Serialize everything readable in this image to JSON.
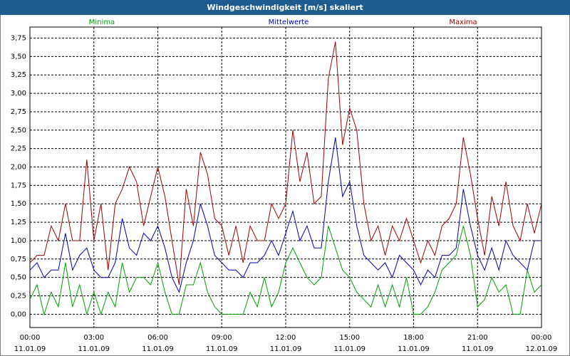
{
  "chart_data": {
    "type": "line",
    "title": "Windgeschwindigkeit [m/s] skaliert",
    "x": [
      0,
      20,
      40,
      60,
      80,
      100,
      120,
      140,
      160,
      180,
      200,
      220,
      240,
      260,
      280,
      300,
      320,
      340,
      360,
      380,
      400,
      420,
      440,
      460,
      480,
      500,
      520,
      540,
      560,
      580,
      600,
      620,
      640,
      660,
      680,
      700,
      720,
      740,
      760,
      780,
      800,
      820,
      840,
      860,
      880,
      900,
      920,
      940,
      960,
      980,
      1000,
      1020,
      1040,
      1060,
      1080,
      1100,
      1120,
      1140,
      1160,
      1180,
      1200,
      1220,
      1240,
      1260,
      1280,
      1300,
      1320,
      1340,
      1360,
      1380,
      1400,
      1420,
      1440
    ],
    "series": [
      {
        "name": "Minima",
        "color": "#00a000",
        "values": [
          0.2,
          0.4,
          0,
          0.3,
          0.1,
          0.7,
          0.1,
          0.4,
          0,
          0.3,
          0,
          0.3,
          0.1,
          0.7,
          0.3,
          0.5,
          0.5,
          0.4,
          0.7,
          0.3,
          0,
          0,
          0.4,
          0.4,
          0.7,
          0.3,
          0.1,
          0,
          0,
          0,
          0,
          0.3,
          0.1,
          0.5,
          0.1,
          0.3,
          0.7,
          0.9,
          0.7,
          0.5,
          0.4,
          0.5,
          1.2,
          0.9,
          0.6,
          0.5,
          0.3,
          0.2,
          0.1,
          0.4,
          0.1,
          0.4,
          0.1,
          0.5,
          0,
          0,
          0.1,
          0.3,
          0.6,
          0.7,
          0.8,
          1.2,
          0.8,
          0.1,
          0.2,
          0.5,
          0.3,
          0.4,
          0,
          0,
          0.6,
          0.3,
          0.4
        ]
      },
      {
        "name": "Mittelwerte",
        "color": "#0000b0",
        "values": [
          0.6,
          0.7,
          0.5,
          0.6,
          0.6,
          1.1,
          0.6,
          0.8,
          0.9,
          0.6,
          0.5,
          0.5,
          0.7,
          1.3,
          0.9,
          0.8,
          1.1,
          1.0,
          1.2,
          0.9,
          0.5,
          0.3,
          0.7,
          1.0,
          1.5,
          1.2,
          0.8,
          0.7,
          0.6,
          0.6,
          0.5,
          0.7,
          0.7,
          0.8,
          1.0,
          0.8,
          1.1,
          1.4,
          1.0,
          1.2,
          0.9,
          0.9,
          1.8,
          2.4,
          1.6,
          1.8,
          1.2,
          0.8,
          0.7,
          0.6,
          0.7,
          0.5,
          0.8,
          0.7,
          0.6,
          0.4,
          0.6,
          0.5,
          0.8,
          0.8,
          0.9,
          1.7,
          1.2,
          0.8,
          0.6,
          0.9,
          0.6,
          1.0,
          0.8,
          0.7,
          0.6,
          1.0,
          1.0
        ]
      },
      {
        "name": "Maxima",
        "color": "#a00000",
        "values": [
          0.7,
          0.8,
          0.8,
          1.2,
          1.0,
          1.5,
          1.0,
          1.0,
          2.1,
          1.0,
          1.5,
          0.6,
          1.5,
          1.7,
          2.0,
          1.8,
          1.2,
          1.6,
          2.0,
          1.6,
          1.0,
          0.4,
          1.7,
          1.2,
          2.2,
          1.9,
          1.3,
          1.2,
          0.8,
          1.2,
          0.7,
          1.2,
          1.0,
          1.0,
          1.5,
          1.3,
          1.5,
          2.5,
          1.8,
          2.2,
          1.5,
          1.6,
          3.2,
          3.7,
          2.3,
          2.8,
          2.5,
          1.5,
          1.0,
          1.2,
          0.8,
          1.2,
          1.0,
          1.3,
          1.0,
          0.7,
          1.0,
          0.8,
          1.2,
          1.3,
          1.5,
          2.4,
          1.9,
          1.3,
          0.8,
          1.6,
          1.2,
          1.8,
          1.2,
          1.0,
          1.5,
          1.1,
          1.5
        ]
      }
    ],
    "xlim": [
      0,
      1440
    ],
    "xticks": [
      {
        "value": 0,
        "label": "00:00"
      },
      {
        "value": 180,
        "label": "03:00"
      },
      {
        "value": 360,
        "label": "06:00"
      },
      {
        "value": 540,
        "label": "09:00"
      },
      {
        "value": 720,
        "label": "12:00"
      },
      {
        "value": 900,
        "label": "15:00"
      },
      {
        "value": 1080,
        "label": "18:00"
      },
      {
        "value": 1260,
        "label": "21:00"
      },
      {
        "value": 1440,
        "label": "00:00"
      }
    ],
    "xtick_dates": [
      "11.01.09",
      "11.01.09",
      "11.01.09",
      "11.01.09",
      "11.01.09",
      "11.01.09",
      "11.01.09",
      "11.01.09",
      "12.01.09"
    ],
    "ylim": [
      -0.18,
      3.9
    ],
    "yticks": [
      {
        "value": 0,
        "label": "0,00"
      },
      {
        "value": 0.25,
        "label": "0,25"
      },
      {
        "value": 0.5,
        "label": "0,50"
      },
      {
        "value": 0.75,
        "label": "0,75"
      },
      {
        "value": 1,
        "label": "1,00"
      },
      {
        "value": 1.25,
        "label": "1,25"
      },
      {
        "value": 1.5,
        "label": "1,50"
      },
      {
        "value": 1.75,
        "label": "1,75"
      },
      {
        "value": 2,
        "label": "2,00"
      },
      {
        "value": 2.25,
        "label": "2,25"
      },
      {
        "value": 2.5,
        "label": "2,50"
      },
      {
        "value": 2.75,
        "label": "2,75"
      },
      {
        "value": 3,
        "label": "3,00"
      },
      {
        "value": 3.25,
        "label": "3,25"
      },
      {
        "value": 3.5,
        "label": "3,50"
      },
      {
        "value": 3.75,
        "label": "3,75"
      }
    ],
    "grid": true
  }
}
